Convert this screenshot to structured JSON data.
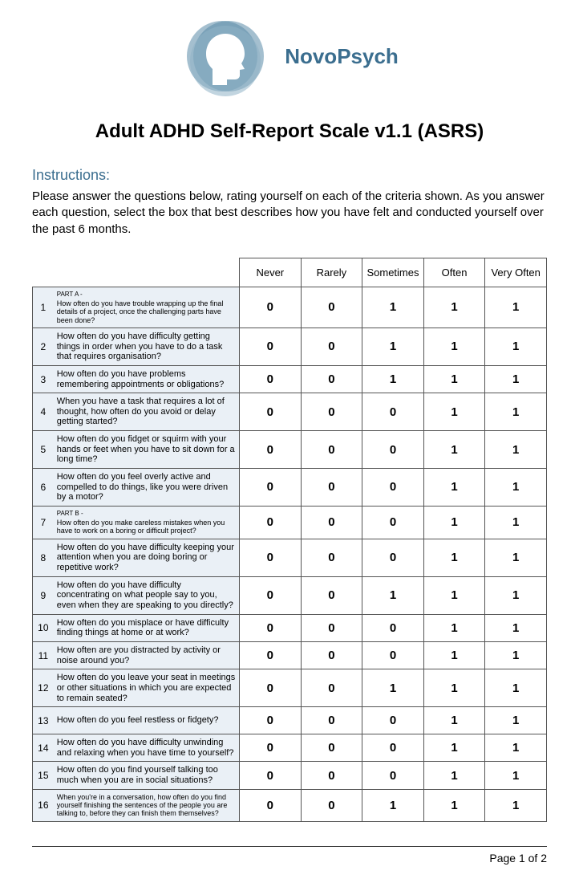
{
  "brand": "NovoPsych",
  "title": "Adult ADHD Self-Report Scale v1.1 (ASRS)",
  "instructions_label": "Instructions:",
  "instructions_text": "Please answer the questions below, rating yourself on each of the criteria shown.  As you answer each question, select the box that best describes how you have felt and conducted yourself over the past 6 months.",
  "columns": [
    "Never",
    "Rarely",
    "Sometimes",
    "Often",
    "Very Often"
  ],
  "rows": [
    {
      "n": "1",
      "part": "PART A -",
      "q": "How often do you have trouble wrapping up the final details of a project, once the challenging parts have been done?",
      "small": true,
      "vals": [
        "0",
        "0",
        "1",
        "1",
        "1"
      ]
    },
    {
      "n": "2",
      "q": "How often do you have difficulty getting things in order when you have to do a task that requires organisation?",
      "vals": [
        "0",
        "0",
        "1",
        "1",
        "1"
      ]
    },
    {
      "n": "3",
      "q": "How often do you have problems remembering appointments or obligations?",
      "vals": [
        "0",
        "0",
        "1",
        "1",
        "1"
      ]
    },
    {
      "n": "4",
      "q": "When you have a task that requires a lot of thought, how often do you avoid or delay getting started?",
      "vals": [
        "0",
        "0",
        "0",
        "1",
        "1"
      ]
    },
    {
      "n": "5",
      "q": "How often do you fidget or squirm with your hands or feet when you have to sit down for a long time?",
      "vals": [
        "0",
        "0",
        "0",
        "1",
        "1"
      ]
    },
    {
      "n": "6",
      "q": "How often do you feel overly active and compelled to do things, like you were driven by a motor?",
      "vals": [
        "0",
        "0",
        "0",
        "1",
        "1"
      ]
    },
    {
      "n": "7",
      "part": "PART B -",
      "q": "How often do you make careless mistakes when you have to work on a boring or difficult project?",
      "small": true,
      "vals": [
        "0",
        "0",
        "0",
        "1",
        "1"
      ]
    },
    {
      "n": "8",
      "q": "How often do you have difficulty keeping your attention when you are doing boring or repetitive work?",
      "vals": [
        "0",
        "0",
        "0",
        "1",
        "1"
      ]
    },
    {
      "n": "9",
      "q": "How often do you have difficulty concentrating on what people say to you, even when they are speaking to you directly?",
      "vals": [
        "0",
        "0",
        "1",
        "1",
        "1"
      ]
    },
    {
      "n": "10",
      "q": "How often do you misplace or have difficulty finding things at home or at work?",
      "vals": [
        "0",
        "0",
        "0",
        "1",
        "1"
      ]
    },
    {
      "n": "11",
      "q": "How often are you distracted by activity or noise around you?",
      "vals": [
        "0",
        "0",
        "0",
        "1",
        "1"
      ]
    },
    {
      "n": "12",
      "q": "How often do you leave your seat in meetings or other situations in which you are expected to remain seated?",
      "vals": [
        "0",
        "0",
        "1",
        "1",
        "1"
      ]
    },
    {
      "n": "13",
      "q": "How often do you feel restless or fidgety?",
      "vals": [
        "0",
        "0",
        "0",
        "1",
        "1"
      ]
    },
    {
      "n": "14",
      "q": "How often do you have difficulty unwinding and relaxing when you have time to yourself?",
      "vals": [
        "0",
        "0",
        "0",
        "1",
        "1"
      ]
    },
    {
      "n": "15",
      "q": "How often do you find yourself talking too much when you are in social situations?",
      "vals": [
        "0",
        "0",
        "0",
        "1",
        "1"
      ]
    },
    {
      "n": "16",
      "q": "When you're in a conversation, how often do you find yourself finishing the sentences of the people you are talking to, before they can finish them themselves?",
      "small": true,
      "vals": [
        "0",
        "0",
        "1",
        "1",
        "1"
      ]
    }
  ],
  "footer": "Page 1 of 2",
  "colors": {
    "brand": "#3b6e8f",
    "row_bg": "#eaf0f6",
    "border": "#555555",
    "logo_outer": "#5a8aa8",
    "logo_inner": "#8fb3c7"
  }
}
